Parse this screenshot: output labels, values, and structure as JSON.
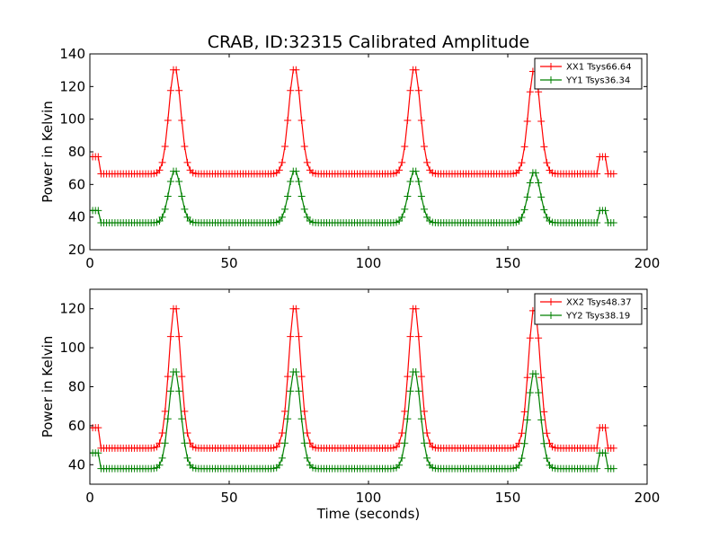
{
  "figure": {
    "title": "CRAB, ID:32315 Calibrated Amplitude"
  },
  "colors": {
    "xx": "#ff0000",
    "yy": "#008000"
  },
  "chart_data": [
    {
      "type": "line",
      "title": "CRAB, ID:32315 Calibrated Amplitude",
      "xlabel": "",
      "ylabel": "Power in Kelvin",
      "xlim": [
        0,
        200
      ],
      "ylim": [
        20,
        140
      ],
      "xticks": [
        "0",
        "50",
        "100",
        "150",
        "200"
      ],
      "yticks": [
        "20",
        "40",
        "60",
        "80",
        "100",
        "120",
        "140"
      ],
      "legend_position": "top-right",
      "marker": "+",
      "sample_interval_s": 1,
      "duration_s": 188,
      "series": [
        {
          "name": "XX1 Tsys66.64",
          "color": "#ff0000",
          "baseline": 66.5,
          "cal_level": 77,
          "cal_windows": [
            [
              0,
              3
            ],
            [
              183,
              185
            ]
          ],
          "peaks": [
            {
              "center": 30.5,
              "peak": 132,
              "fwhm": 5
            },
            {
              "center": 73.5,
              "peak": 132,
              "fwhm": 5
            },
            {
              "center": 116.5,
              "peak": 132,
              "fwhm": 5
            },
            {
              "center": 159.5,
              "peak": 131,
              "fwhm": 5
            }
          ]
        },
        {
          "name": "YY1 Tsys36.34",
          "color": "#008000",
          "baseline": 36.5,
          "cal_level": 44,
          "cal_windows": [
            [
              0,
              3
            ],
            [
              183,
              185
            ]
          ],
          "peaks": [
            {
              "center": 30.5,
              "peak": 69,
              "fwhm": 5
            },
            {
              "center": 73.5,
              "peak": 69,
              "fwhm": 5
            },
            {
              "center": 116.5,
              "peak": 69,
              "fwhm": 5
            },
            {
              "center": 159.5,
              "peak": 68,
              "fwhm": 5
            }
          ]
        }
      ]
    },
    {
      "type": "line",
      "title": "",
      "xlabel": "Time (seconds)",
      "ylabel": "Power in Kelvin",
      "xlim": [
        0,
        200
      ],
      "ylim": [
        30,
        130
      ],
      "xticks": [
        "0",
        "50",
        "100",
        "150",
        "200"
      ],
      "yticks": [
        "40",
        "60",
        "80",
        "100",
        "120"
      ],
      "legend_position": "top-right",
      "marker": "+",
      "sample_interval_s": 1,
      "duration_s": 188,
      "series": [
        {
          "name": "XX2 Tsys48.37",
          "color": "#ff0000",
          "baseline": 48.5,
          "cal_level": 59,
          "cal_windows": [
            [
              0,
              3
            ],
            [
              183,
              185
            ]
          ],
          "peaks": [
            {
              "center": 30.5,
              "peak": 122,
              "fwhm": 5
            },
            {
              "center": 73.5,
              "peak": 122,
              "fwhm": 5
            },
            {
              "center": 116.5,
              "peak": 122,
              "fwhm": 5
            },
            {
              "center": 159.5,
              "peak": 121,
              "fwhm": 5
            }
          ]
        },
        {
          "name": "YY2 Tsys38.19",
          "color": "#008000",
          "baseline": 38,
          "cal_level": 46,
          "cal_windows": [
            [
              0,
              3
            ],
            [
              183,
              185
            ]
          ],
          "peaks": [
            {
              "center": 30.5,
              "peak": 89,
              "fwhm": 5
            },
            {
              "center": 73.5,
              "peak": 89,
              "fwhm": 5
            },
            {
              "center": 116.5,
              "peak": 89,
              "fwhm": 5
            },
            {
              "center": 159.5,
              "peak": 88,
              "fwhm": 5
            }
          ]
        }
      ]
    }
  ]
}
